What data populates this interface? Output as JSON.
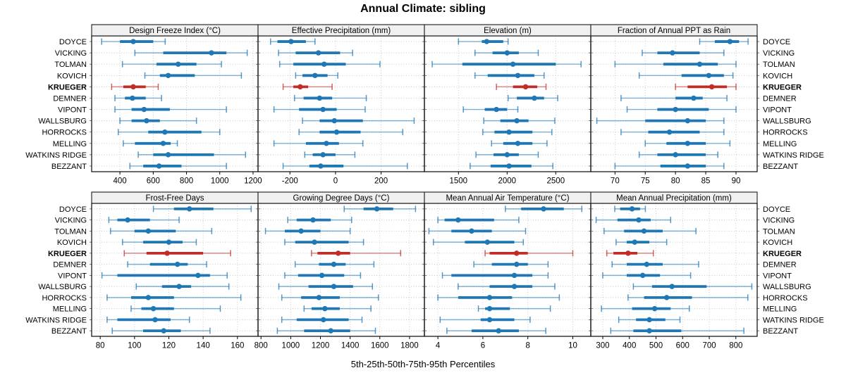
{
  "title": "Annual Climate: sibling",
  "caption": "5th-25th-50th-75th-95th Percentiles",
  "highlight_station": "KRUEGER",
  "stations": [
    "DOYCE",
    "VICKING",
    "TOLMAN",
    "KOVICH",
    "KRUEGER",
    "DEMNER",
    "VIPONT",
    "WALLSBURG",
    "HORROCKS",
    "MELLING",
    "WATKINS RIDGE",
    "BEZZANT"
  ],
  "colors": {
    "series_blue": "#1F77B4",
    "highlight_red": "#C12E2A",
    "strip_bg": "#F0F0F0",
    "panel_border": "#1A1A1A",
    "gridline": "#C6C6C6",
    "text": "#000000"
  },
  "chart_data": {
    "type": "scatter",
    "variant": "percentile-interval-dotplot (5-25-50-75-95)",
    "layout": "lattice 2 rows x 4 cols, shared station y-axis, KRUEGER highlighted red",
    "percentiles": [
      5,
      25,
      50,
      75,
      95
    ],
    "categories": [
      "DOYCE",
      "VICKING",
      "TOLMAN",
      "KOVICH",
      "KRUEGER",
      "DEMNER",
      "VIPONT",
      "WALLSBURG",
      "HORROCKS",
      "MELLING",
      "WATKINS RIDGE",
      "BEZZANT"
    ],
    "panels": [
      {
        "title": "Design Freeze Index (°C)",
        "row": 0,
        "col": 0,
        "xlim": [
          230,
          1230
        ],
        "ticks": [
          400,
          600,
          800,
          1000,
          1200
        ],
        "values": {
          "DOYCE": [
            290,
            400,
            480,
            600,
            672
          ],
          "VICKING": [
            490,
            660,
            950,
            1040,
            1165
          ],
          "TOLMAN": [
            415,
            620,
            750,
            860,
            1010
          ],
          "KOVICH": [
            550,
            640,
            690,
            850,
            1130
          ],
          "KRUEGER": [
            350,
            420,
            480,
            555,
            630
          ],
          "DEMNER": [
            370,
            430,
            475,
            555,
            650
          ],
          "VIPONT": [
            370,
            470,
            545,
            700,
            1040
          ],
          "WALLSBURG": [
            400,
            470,
            560,
            640,
            860
          ],
          "HORROCKS": [
            390,
            570,
            670,
            890,
            1000
          ],
          "MELLING": [
            420,
            490,
            660,
            705,
            745
          ],
          "WATKINS RIDGE": [
            510,
            600,
            690,
            965,
            1155
          ],
          "BEZZANT": [
            460,
            540,
            635,
            770,
            1040
          ]
        }
      },
      {
        "title": "Effective Precipitation (mm)",
        "row": 0,
        "col": 1,
        "xlim": [
          -340,
          390
        ],
        "ticks": [
          -200,
          0,
          200
        ],
        "values": {
          "DOYCE": [
            -285,
            -255,
            -195,
            -130,
            -90
          ],
          "VICKING": [
            -250,
            -175,
            -75,
            20,
            75
          ],
          "TOLMAN": [
            -245,
            -185,
            -50,
            45,
            195
          ],
          "KOVICH": [
            -175,
            -145,
            -90,
            -35,
            10
          ],
          "KRUEGER": [
            -230,
            -185,
            -155,
            -120,
            -15
          ],
          "DEMNER": [
            -180,
            -140,
            -70,
            -15,
            135
          ],
          "VIPONT": [
            -270,
            -160,
            -55,
            5,
            130
          ],
          "WALLSBURG": [
            -145,
            -70,
            -5,
            120,
            345
          ],
          "HORROCKS": [
            -160,
            -70,
            5,
            110,
            295
          ],
          "MELLING": [
            -270,
            -130,
            -40,
            15,
            120
          ],
          "WATKINS RIDGE": [
            -135,
            -100,
            -55,
            0,
            85
          ],
          "BEZZANT": [
            -230,
            -115,
            -65,
            35,
            315
          ]
        }
      },
      {
        "title": "Elevation (m)",
        "row": 0,
        "col": 2,
        "xlim": [
          1150,
          2860
        ],
        "ticks": [
          1500,
          2000,
          2500
        ],
        "values": {
          "DOYCE": [
            1500,
            1740,
            1790,
            1960,
            2010
          ],
          "VICKING": [
            1670,
            1850,
            2000,
            2120,
            2320
          ],
          "TOLMAN": [
            1230,
            1540,
            2060,
            2500,
            2760
          ],
          "KOVICH": [
            1670,
            1800,
            2110,
            2280,
            2380
          ],
          "KRUEGER": [
            1890,
            2060,
            2190,
            2310,
            2400
          ],
          "DEMNER": [
            2010,
            2100,
            2280,
            2380,
            2520
          ],
          "VIPONT": [
            1550,
            1770,
            1890,
            2000,
            2110
          ],
          "WALLSBURG": [
            1760,
            1930,
            2100,
            2220,
            2490
          ],
          "HORROCKS": [
            1750,
            1870,
            2020,
            2260,
            2460
          ],
          "MELLING": [
            1840,
            1960,
            2110,
            2260,
            2410
          ],
          "WATKINS RIDGE": [
            1680,
            1860,
            2000,
            2120,
            2320
          ],
          "BEZZANT": [
            1620,
            1830,
            2020,
            2250,
            2470
          ]
        }
      },
      {
        "title": "Fraction of Annual PPT as Rain",
        "row": 0,
        "col": 3,
        "xlim": [
          66,
          93.5
        ],
        "ticks": [
          70,
          75,
          80,
          85,
          90
        ],
        "values": {
          "DOYCE": [
            84,
            86.5,
            89,
            90.5,
            92
          ],
          "VICKING": [
            74.5,
            77,
            79.5,
            84,
            88
          ],
          "TOLMAN": [
            70,
            78,
            84,
            87,
            90
          ],
          "KOVICH": [
            74,
            81,
            85.5,
            88,
            89.5
          ],
          "KRUEGER": [
            80,
            82,
            86,
            88.5,
            90
          ],
          "DEMNER": [
            71,
            80,
            83,
            84.5,
            88.5
          ],
          "VIPONT": [
            72,
            77,
            80,
            85.5,
            90
          ],
          "WALLSBURG": [
            67,
            75,
            82,
            85,
            88
          ],
          "HORROCKS": [
            71,
            75.5,
            79,
            84,
            88
          ],
          "MELLING": [
            75,
            78.5,
            82,
            85,
            89
          ],
          "WATKINS RIDGE": [
            74,
            77,
            80,
            85,
            87
          ],
          "BEZZANT": [
            70,
            77.5,
            82,
            85,
            88
          ]
        }
      },
      {
        "title": "Frost-Free Days",
        "row": 1,
        "col": 0,
        "xlim": [
          75,
          172
        ],
        "ticks": [
          80,
          100,
          120,
          140,
          160
        ],
        "values": {
          "DOYCE": [
            111,
            123,
            132,
            146,
            168
          ],
          "VICKING": [
            85,
            90,
            96,
            109,
            126
          ],
          "TOLMAN": [
            86,
            100,
            108,
            124,
            145
          ],
          "KOVICH": [
            93,
            105,
            120,
            128,
            136
          ],
          "KRUEGER": [
            94,
            107,
            119,
            140,
            156
          ],
          "DEMNER": [
            96,
            109,
            125,
            131,
            142
          ],
          "VIPONT": [
            81,
            90,
            137,
            144,
            154
          ],
          "WALLSBURG": [
            101,
            116,
            126,
            133,
            155
          ],
          "HORROCKS": [
            84,
            98,
            108,
            123,
            162
          ],
          "MELLING": [
            98,
            104,
            111,
            123,
            150
          ],
          "WATKINS RIDGE": [
            84,
            90,
            112,
            121,
            132
          ],
          "BEZZANT": [
            87,
            105,
            117,
            127,
            144
          ]
        }
      },
      {
        "title": "Growing Degree Days (°C)",
        "row": 1,
        "col": 1,
        "xlim": [
          780,
          1900
        ],
        "ticks": [
          800,
          1000,
          1200,
          1400,
          1600,
          1800
        ],
        "values": {
          "DOYCE": [
            1360,
            1490,
            1580,
            1690,
            1840
          ],
          "VICKING": [
            980,
            1040,
            1150,
            1270,
            1410
          ],
          "TOLMAN": [
            830,
            960,
            1070,
            1200,
            1400
          ],
          "KOVICH": [
            960,
            1030,
            1160,
            1390,
            1490
          ],
          "KRUEGER": [
            1140,
            1180,
            1320,
            1400,
            1740
          ],
          "DEMNER": [
            1030,
            1190,
            1290,
            1370,
            1560
          ],
          "VIPONT": [
            960,
            1050,
            1210,
            1360,
            1470
          ],
          "WALLSBURG": [
            920,
            1120,
            1290,
            1420,
            1550
          ],
          "HORROCKS": [
            940,
            1070,
            1190,
            1330,
            1590
          ],
          "MELLING": [
            1090,
            1140,
            1230,
            1330,
            1540
          ],
          "WATKINS RIDGE": [
            940,
            1040,
            1220,
            1390,
            1480
          ],
          "BEZZANT": [
            910,
            1090,
            1270,
            1400,
            1570
          ]
        }
      },
      {
        "title": "Mean Annual Air Temperature (°C)",
        "row": 1,
        "col": 2,
        "xlim": [
          3.4,
          10.8
        ],
        "ticks": [
          4,
          6,
          8,
          10
        ],
        "values": {
          "DOYCE": [
            7.0,
            7.7,
            8.7,
            9.6,
            10.4
          ],
          "VICKING": [
            4.0,
            4.3,
            4.9,
            6.5,
            7.6
          ],
          "TOLMAN": [
            3.6,
            4.6,
            5.5,
            6.4,
            7.9
          ],
          "KOVICH": [
            3.8,
            5.2,
            6.2,
            7.4,
            7.8
          ],
          "KRUEGER": [
            6.1,
            6.3,
            7.5,
            8.0,
            10.0
          ],
          "DEMNER": [
            5.6,
            6.4,
            7.5,
            8.0,
            8.9
          ],
          "VIPONT": [
            4.2,
            4.6,
            7.4,
            8.2,
            8.9
          ],
          "WALLSBURG": [
            4.9,
            6.3,
            7.4,
            8.2,
            9.2
          ],
          "HORROCKS": [
            4.0,
            4.9,
            6.3,
            7.3,
            9.4
          ],
          "MELLING": [
            5.8,
            6.1,
            6.3,
            7.2,
            9.0
          ],
          "WATKINS RIDGE": [
            4.1,
            5.9,
            6.3,
            7.4,
            8.1
          ],
          "BEZZANT": [
            4.4,
            5.5,
            6.7,
            7.6,
            8.8
          ]
        }
      },
      {
        "title": "Mean Annual Precipitation (mm)",
        "row": 1,
        "col": 3,
        "xlim": [
          255,
          880
        ],
        "ticks": [
          300,
          400,
          500,
          600,
          700,
          800
        ],
        "values": {
          "DOYCE": [
            345,
            365,
            410,
            440,
            460
          ],
          "VICKING": [
            275,
            355,
            435,
            480,
            555
          ],
          "TOLMAN": [
            305,
            380,
            455,
            525,
            650
          ],
          "KOVICH": [
            350,
            390,
            420,
            475,
            540
          ],
          "KRUEGER": [
            315,
            340,
            395,
            430,
            490
          ],
          "DEMNER": [
            335,
            390,
            465,
            525,
            660
          ],
          "VIPONT": [
            300,
            390,
            450,
            515,
            630
          ],
          "WALLSBURG": [
            415,
            485,
            560,
            690,
            860
          ],
          "HORROCKS": [
            395,
            455,
            540,
            635,
            845
          ],
          "MELLING": [
            295,
            410,
            495,
            555,
            625
          ],
          "WATKINS RIDGE": [
            360,
            425,
            475,
            535,
            590
          ],
          "BEZZANT": [
            330,
            415,
            475,
            595,
            830
          ]
        }
      }
    ]
  }
}
